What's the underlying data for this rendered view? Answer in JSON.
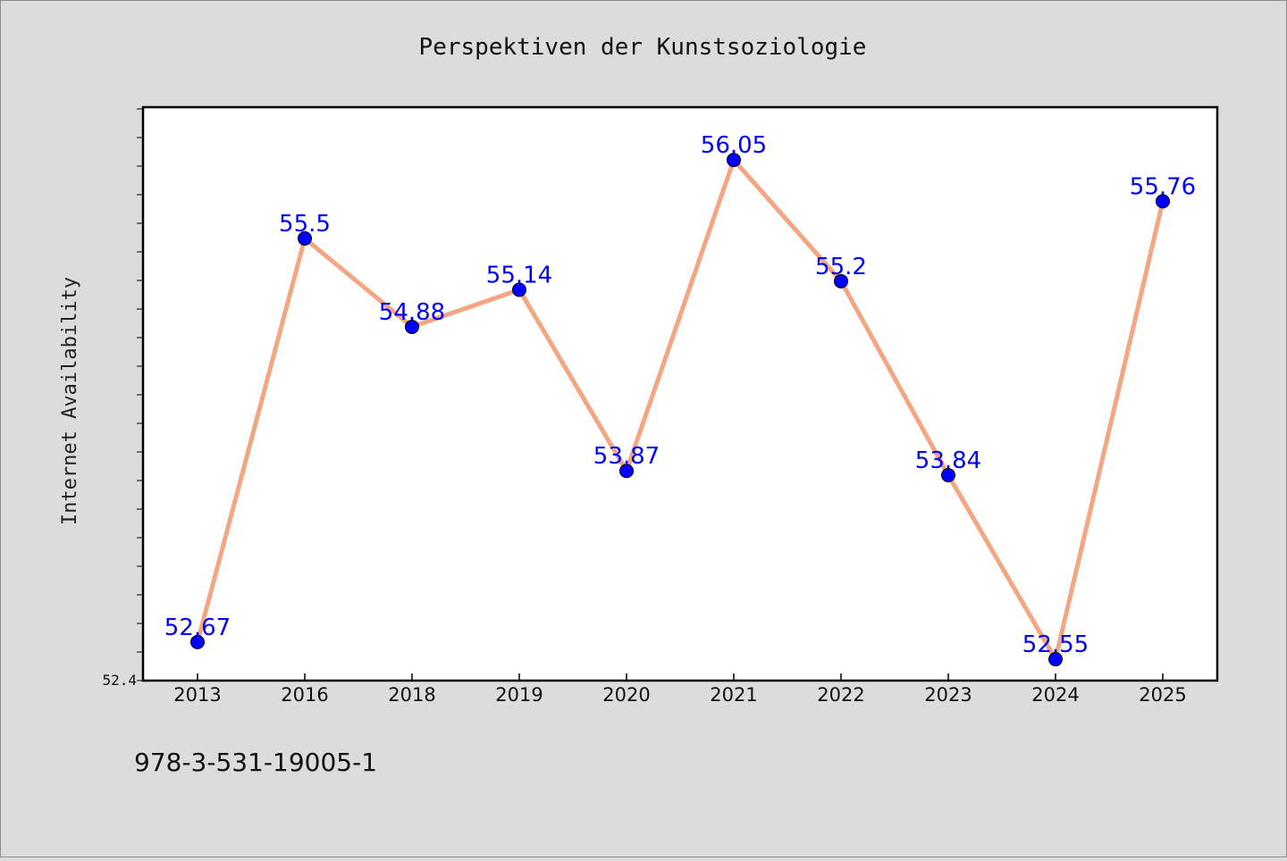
{
  "chart_data": {
    "type": "line",
    "title": "Perspektiven der Kunstsoziologie",
    "xlabel": "",
    "ylabel": "Internet Availability",
    "categories": [
      "2013",
      "2016",
      "2018",
      "2019",
      "2020",
      "2021",
      "2022",
      "2023",
      "2024",
      "2025"
    ],
    "series": [
      {
        "values": [
          52.67,
          55.5,
          54.88,
          55.14,
          53.87,
          56.05,
          55.2,
          53.84,
          52.55,
          55.76
        ],
        "data_labels": [
          "52.67",
          "55.5",
          "54.88",
          "55.14",
          "53.87",
          "56.05",
          "55.2",
          "53.84",
          "52.55",
          "55.76"
        ],
        "line_color": "#f4a582",
        "marker_color": "#0000ff"
      }
    ],
    "ylim": [
      52.4,
      56.42
    ],
    "y_tick_labels": [
      "52.4"
    ],
    "grid": false,
    "legend": "none"
  },
  "footer_text": "978-3-531-19005-1",
  "colors": {
    "background": "#dcdcdc",
    "plot_background": "#ffffff",
    "line": "#f4a582",
    "marker": "#0000ff",
    "data_label": "#0000ff"
  }
}
